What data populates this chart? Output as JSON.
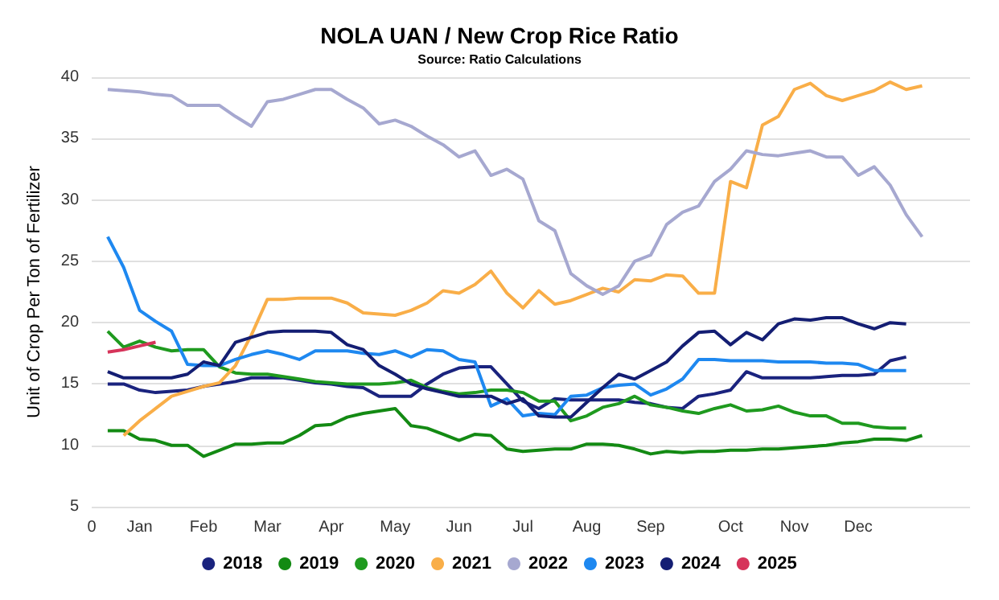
{
  "chart_data": {
    "type": "line",
    "title": "NOLA UAN / New Crop Rice Ratio",
    "subtitle": "Source: Ratio Calculations",
    "ylabel": "Unit of Crop Per Ton of Fertilizer",
    "categories": [
      "0",
      null,
      null,
      "Jan",
      null,
      null,
      null,
      "Feb",
      null,
      null,
      null,
      "Mar",
      null,
      null,
      null,
      "Apr",
      null,
      null,
      null,
      "May",
      null,
      null,
      null,
      "Jun",
      null,
      null,
      null,
      "Jul",
      null,
      null,
      null,
      "Aug",
      null,
      null,
      null,
      "Sep",
      null,
      null,
      null,
      null,
      "Oct",
      null,
      null,
      null,
      "Nov",
      null,
      null,
      null,
      "Dec",
      null,
      null,
      null,
      null,
      null,
      null,
      null
    ],
    "ylim": [
      5,
      40
    ],
    "yticks": [
      5,
      10,
      15,
      20,
      25,
      30,
      35,
      40
    ],
    "grid": "y",
    "legend": "bottom",
    "marker": "none",
    "line_style": "solid",
    "series": [
      {
        "name": "2018",
        "color": "#1a237e",
        "values": [
          null,
          15,
          15,
          14.5,
          14.3,
          14.4,
          14.5,
          14.8,
          15,
          15.2,
          15.5,
          15.5,
          15.5,
          15.3,
          15.1,
          15,
          14.8,
          14.7,
          14,
          14,
          14,
          15,
          15.8,
          16.3,
          16.4,
          16.4,
          15,
          13.6,
          13,
          13.8,
          13.7,
          13.7,
          13.7,
          13.7,
          13.5,
          13.4,
          13.1,
          13,
          14,
          14.2,
          14.5,
          16,
          15.5,
          15.5,
          15.5,
          15.5,
          15.6,
          15.7,
          15.7,
          15.8,
          16.9,
          17.2,
          null,
          null,
          null,
          null
        ]
      },
      {
        "name": "2019",
        "color": "#138a13",
        "values": [
          null,
          11.2,
          11.2,
          10.5,
          10.4,
          10,
          10,
          9.1,
          9.6,
          10.1,
          10.1,
          10.2,
          10.2,
          10.8,
          11.6,
          11.7,
          12.3,
          12.6,
          12.8,
          13,
          11.6,
          11.4,
          10.9,
          10.4,
          10.9,
          10.8,
          9.7,
          9.5,
          9.6,
          9.7,
          9.7,
          10.1,
          10.1,
          10,
          9.7,
          9.3,
          9.5,
          9.4,
          9.5,
          9.5,
          9.6,
          9.6,
          9.7,
          9.7,
          9.8,
          9.9,
          10,
          10.2,
          10.3,
          10.5,
          10.5,
          10.4,
          10.8,
          null,
          null,
          null
        ]
      },
      {
        "name": "2020",
        "color": "#1f9a1f",
        "values": [
          null,
          19.3,
          18,
          18.5,
          18,
          17.7,
          17.8,
          17.8,
          16.4,
          15.9,
          15.8,
          15.8,
          15.6,
          15.4,
          15.2,
          15.1,
          15,
          15,
          15,
          15.1,
          15.3,
          14.7,
          14.4,
          14.2,
          14.3,
          14.5,
          14.5,
          14.3,
          13.6,
          13.6,
          12,
          12.4,
          13.1,
          13.4,
          14,
          13.3,
          13.1,
          12.8,
          12.6,
          13,
          13.3,
          12.8,
          12.9,
          13.2,
          12.7,
          12.4,
          12.4,
          11.8,
          11.8,
          11.5,
          11.4,
          11.4,
          null,
          null,
          null,
          null
        ]
      },
      {
        "name": "2021",
        "color": "#f9ae48",
        "values": [
          null,
          null,
          10.8,
          12,
          13,
          14,
          14.4,
          14.8,
          15.1,
          16.5,
          19,
          21.9,
          21.9,
          22,
          22,
          22,
          21.6,
          20.8,
          20.7,
          20.6,
          21,
          21.6,
          22.6,
          22.4,
          23.1,
          24.2,
          22.4,
          21.2,
          22.6,
          21.5,
          21.8,
          22.3,
          22.8,
          22.5,
          23.5,
          23.4,
          23.9,
          23.8,
          22.4,
          22.4,
          31.5,
          31,
          36.1,
          36.8,
          39,
          39.5,
          38.5,
          38.1,
          38.5,
          38.9,
          39.6,
          39,
          39.3,
          null,
          null,
          null
        ]
      },
      {
        "name": "2022",
        "color": "#a6a8d0",
        "values": [
          null,
          39,
          38.9,
          38.8,
          38.6,
          38.5,
          37.7,
          37.7,
          37.7,
          36.8,
          36,
          38,
          38.2,
          38.6,
          39,
          39,
          38.2,
          37.5,
          36.2,
          36.5,
          36,
          35.2,
          34.5,
          33.5,
          34,
          32,
          32.5,
          31.7,
          28.3,
          27.5,
          24,
          23,
          22.3,
          23,
          25,
          25.5,
          28,
          29,
          29.5,
          31.5,
          32.5,
          34,
          33.7,
          33.6,
          33.8,
          34,
          33.5,
          33.5,
          32,
          32.7,
          31.2,
          28.8,
          27,
          null,
          null,
          null
        ]
      },
      {
        "name": "2023",
        "color": "#1e88f0",
        "values": [
          null,
          27,
          24.5,
          21,
          20.1,
          19.3,
          16.6,
          16.5,
          16.5,
          17,
          17.4,
          17.7,
          17.4,
          17,
          17.7,
          17.7,
          17.7,
          17.5,
          17.4,
          17.7,
          17.2,
          17.8,
          17.7,
          17,
          16.8,
          13.2,
          13.8,
          12.4,
          12.6,
          12.5,
          14,
          14.1,
          14.7,
          14.9,
          15,
          14.1,
          14.6,
          15.4,
          17,
          17,
          16.9,
          16.9,
          16.9,
          16.8,
          16.8,
          16.8,
          16.7,
          16.7,
          16.6,
          16.1,
          16.1,
          16.1,
          null,
          null,
          null,
          null
        ]
      },
      {
        "name": "2024",
        "color": "#141e73",
        "values": [
          null,
          16,
          15.5,
          15.5,
          15.5,
          15.5,
          15.8,
          16.8,
          16.5,
          18.4,
          18.8,
          19.2,
          19.3,
          19.3,
          19.3,
          19.2,
          18.2,
          17.8,
          16.5,
          15.8,
          15,
          14.6,
          14.3,
          14,
          14,
          14,
          13.4,
          13.8,
          12.4,
          12.3,
          12.3,
          13.5,
          14.7,
          15.8,
          15.4,
          16.1,
          16.8,
          18.1,
          19.2,
          19.3,
          18.2,
          19.2,
          18.6,
          19.9,
          20.3,
          20.2,
          20.4,
          20.4,
          19.9,
          19.5,
          20,
          19.9,
          null,
          null,
          null,
          null
        ]
      },
      {
        "name": "2025",
        "color": "#d6345a",
        "values": [
          null,
          17.6,
          17.8,
          18.1,
          18.4,
          null,
          null,
          null,
          null,
          null,
          null,
          null,
          null,
          null,
          null,
          null,
          null,
          null,
          null,
          null,
          null,
          null,
          null,
          null,
          null,
          null,
          null,
          null,
          null,
          null,
          null,
          null,
          null,
          null,
          null,
          null,
          null,
          null,
          null,
          null,
          null,
          null,
          null,
          null,
          null,
          null,
          null,
          null,
          null,
          null,
          null,
          null,
          null,
          null,
          null,
          null
        ]
      }
    ]
  }
}
